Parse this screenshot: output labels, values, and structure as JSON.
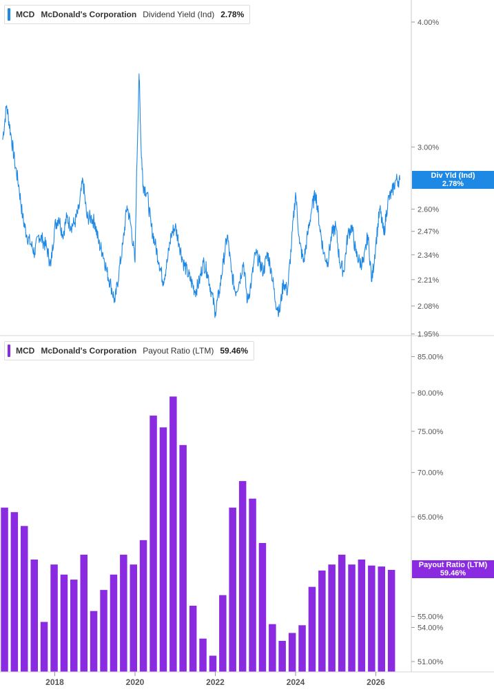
{
  "colors": {
    "yield": "#1e88e5",
    "payout": "#8a2be2",
    "axis_text": "#555555",
    "grid": "#e0e0e0"
  },
  "top_panel": {
    "legend": {
      "ticker": "MCD",
      "company": "McDonald's Corporation",
      "metric": "Dividend Yield (Ind)",
      "value": "2.78%"
    },
    "tag": {
      "label": "Div Yld (Ind)",
      "value": "2.78%"
    },
    "y_ticks": [
      "4.00%",
      "3.00%",
      "2.60%",
      "2.47%",
      "2.34%",
      "2.21%",
      "2.08%",
      "1.95%"
    ]
  },
  "bottom_panel": {
    "legend": {
      "ticker": "MCD",
      "company": "McDonald's Corporation",
      "metric": "Payout Ratio (LTM)",
      "value": "59.46%"
    },
    "tag": {
      "label": "Payout Ratio (LTM)",
      "value": "59.46%"
    },
    "y_ticks": [
      "85.00%",
      "80.00%",
      "75.00%",
      "70.00%",
      "65.00%",
      "55.00%",
      "54.00%",
      "51.00%"
    ]
  },
  "x_ticks": [
    "2018",
    "2020",
    "2022",
    "2024",
    "2026"
  ],
  "chart_data": [
    {
      "type": "line",
      "ylabel": "",
      "y_scale": "log",
      "ylim": [
        1.95,
        4.2
      ],
      "x": [
        2016.7,
        2016.8,
        2016.9,
        2017.0,
        2017.1,
        2017.2,
        2017.3,
        2017.4,
        2017.5,
        2017.6,
        2017.7,
        2017.8,
        2017.9,
        2018.0,
        2018.1,
        2018.2,
        2018.3,
        2018.4,
        2018.5,
        2018.6,
        2018.7,
        2018.8,
        2018.9,
        2019.0,
        2019.1,
        2019.2,
        2019.3,
        2019.4,
        2019.5,
        2019.6,
        2019.7,
        2019.8,
        2019.9,
        2020.0,
        2020.1,
        2020.15,
        2020.2,
        2020.3,
        2020.4,
        2020.5,
        2020.6,
        2020.7,
        2020.8,
        2020.9,
        2021.0,
        2021.1,
        2021.2,
        2021.3,
        2021.4,
        2021.5,
        2021.6,
        2021.7,
        2021.8,
        2021.9,
        2022.0,
        2022.1,
        2022.2,
        2022.3,
        2022.4,
        2022.5,
        2022.6,
        2022.7,
        2022.8,
        2022.9,
        2023.0,
        2023.1,
        2023.2,
        2023.3,
        2023.4,
        2023.5,
        2023.6,
        2023.7,
        2023.8,
        2023.9,
        2024.0,
        2024.1,
        2024.2,
        2024.3,
        2024.4,
        2024.5,
        2024.6,
        2024.7,
        2024.8,
        2024.9,
        2025.0,
        2025.1,
        2025.2,
        2025.3,
        2025.4,
        2025.5,
        2025.6,
        2025.7,
        2025.8,
        2025.9,
        2026.0,
        2026.1,
        2026.2,
        2026.3,
        2026.4,
        2026.5,
        2026.6
      ],
      "series": [
        {
          "values": [
            3.05,
            3.3,
            3.1,
            2.9,
            2.75,
            2.55,
            2.45,
            2.4,
            2.35,
            2.45,
            2.42,
            2.38,
            2.28,
            2.5,
            2.55,
            2.45,
            2.55,
            2.5,
            2.52,
            2.6,
            2.78,
            2.55,
            2.55,
            2.52,
            2.4,
            2.35,
            2.25,
            2.18,
            2.1,
            2.25,
            2.4,
            2.62,
            2.5,
            2.3,
            3.55,
            3.0,
            2.75,
            2.7,
            2.5,
            2.4,
            2.3,
            2.2,
            2.3,
            2.45,
            2.5,
            2.4,
            2.3,
            2.25,
            2.2,
            2.15,
            2.2,
            2.3,
            2.25,
            2.15,
            2.05,
            2.15,
            2.3,
            2.45,
            2.25,
            2.15,
            2.2,
            2.3,
            2.1,
            2.2,
            2.35,
            2.3,
            2.25,
            2.35,
            2.25,
            2.1,
            2.05,
            2.2,
            2.15,
            2.4,
            2.7,
            2.4,
            2.3,
            2.45,
            2.6,
            2.7,
            2.5,
            2.35,
            2.3,
            2.45,
            2.5,
            2.3,
            2.25,
            2.45,
            2.5,
            2.35,
            2.3,
            2.3,
            2.45,
            2.2,
            2.4,
            2.6,
            2.45,
            2.65,
            2.7,
            2.78,
            2.78
          ]
        }
      ]
    },
    {
      "type": "bar",
      "ylabel": "",
      "y_scale": "log",
      "ylim": [
        50.5,
        86
      ],
      "categories": [
        "2016 Q4",
        "2017 Q1",
        "2017 Q2",
        "2017 Q3",
        "2017 Q4",
        "2018 Q1",
        "2018 Q2",
        "2018 Q3",
        "2018 Q4",
        "2019 Q1",
        "2019 Q2",
        "2019 Q3",
        "2019 Q4",
        "2020 Q1",
        "2020 Q2",
        "2020 Q3",
        "2020 Q4",
        "2021 Q1",
        "2021 Q2",
        "2021 Q3",
        "2021 Q4",
        "2022 Q1",
        "2022 Q2",
        "2022 Q3",
        "2022 Q4",
        "2023 Q1",
        "2023 Q2",
        "2023 Q3",
        "2023 Q4",
        "2024 Q1",
        "2024 Q2",
        "2024 Q3",
        "2024 Q4",
        "2025 Q1",
        "2025 Q2",
        "2025 Q3",
        "2025 Q4",
        "2026 Q1",
        "2026 Q2",
        "2026 Q3"
      ],
      "values": [
        66.0,
        65.5,
        64.0,
        60.5,
        54.5,
        60.0,
        59.0,
        58.5,
        61.0,
        55.5,
        57.5,
        59.0,
        61.0,
        60.0,
        62.5,
        77.0,
        75.5,
        79.5,
        73.3,
        56.0,
        53.0,
        51.5,
        57.0,
        66.0,
        69.0,
        67.0,
        62.2,
        54.3,
        52.8,
        53.5,
        54.2,
        57.8,
        59.4,
        60.0,
        61.0,
        60.0,
        60.5,
        59.9,
        59.8,
        59.46
      ]
    }
  ]
}
